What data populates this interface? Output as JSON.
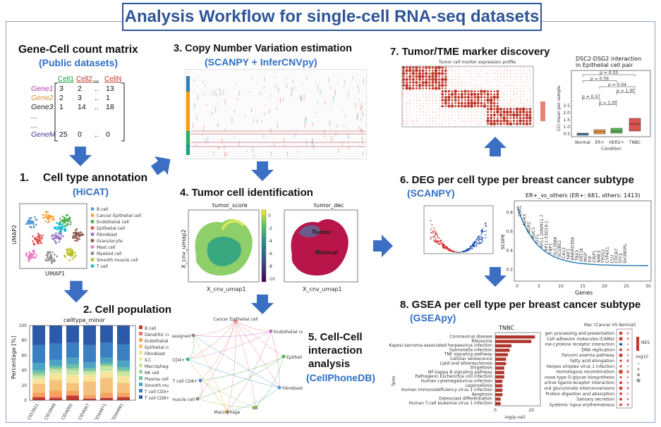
{
  "title": "Analysis Workflow for single-cell RNA-seq datasets",
  "colors": {
    "accent": "#2f5597",
    "subtitle": "#2f6fc5",
    "arrow": "#3b6fc4"
  },
  "matrix": {
    "title": "Gene-Cell count matrix",
    "subtitle": "(Public datasets)",
    "col_headers": [
      "Cell1",
      "Cell2",
      "...",
      "CellN"
    ],
    "rows": [
      {
        "gene": "Gene1",
        "values": [
          "3",
          "2",
          "..",
          "13"
        ]
      },
      {
        "gene": "Gene2",
        "values": [
          "2",
          "3",
          "..",
          "1"
        ]
      },
      {
        "gene": "Gene3",
        "values": [
          "1",
          "14",
          "..",
          "18"
        ]
      },
      {
        "gene": "...",
        "values": [
          "",
          "",
          "",
          ""
        ]
      },
      {
        "gene": "...",
        "values": [
          "",
          "",
          "",
          ""
        ]
      },
      {
        "gene": "GeneM",
        "values": [
          "25",
          "0",
          "..",
          "0"
        ]
      }
    ]
  },
  "step1": {
    "number": "1.",
    "title": "Cell type annotation",
    "subtitle": "(HiCAT)",
    "xlabel": "UMAP1",
    "ylabel": "UMAP2",
    "legend": [
      {
        "label": "B cell",
        "color": "#5b9bd5"
      },
      {
        "label": "Cancer Epithelial cell",
        "color": "#ff9f40"
      },
      {
        "label": "Endothelial cell",
        "color": "#4caf50"
      },
      {
        "label": "Epithelial cell",
        "color": "#e05050"
      },
      {
        "label": "Fibroblast",
        "color": "#9b72c8"
      },
      {
        "label": "Granulocyte",
        "color": "#8c564b"
      },
      {
        "label": "Mast cell",
        "color": "#e77fc4"
      },
      {
        "label": "Myeloid cell",
        "color": "#8a8a8a"
      },
      {
        "label": "Smooth muscle cell",
        "color": "#bcbd22"
      },
      {
        "label": "T cell",
        "color": "#17becf"
      }
    ]
  },
  "step2": {
    "title": "2. Cell population",
    "chart_title": "celltype_minor",
    "ylabel": "Percentage [%]",
    "y_ticks": [
      "0",
      "20",
      "40",
      "60",
      "80",
      "100"
    ],
    "legend": [
      {
        "label": "B cell",
        "color": "#c0392b"
      },
      {
        "label": "Dendritic cell",
        "color": "#e57373"
      },
      {
        "label": "Endothelial cell",
        "color": "#f5a25d"
      },
      {
        "label": "Epithelial cell",
        "color": "#f4c27a"
      },
      {
        "label": "Fibroblast",
        "color": "#f7e39a"
      },
      {
        "label": "ILC",
        "color": "#e9efb0"
      },
      {
        "label": "Macrophage",
        "color": "#c8e6a0"
      },
      {
        "label": "NK cell",
        "color": "#9ed39a"
      },
      {
        "label": "Plasma cell",
        "color": "#6cc0a5"
      },
      {
        "label": "Smooth muscle cell",
        "color": "#4ea3c4"
      },
      {
        "label": "T cell CD4+",
        "color": "#3a7fc1"
      },
      {
        "label": "T cell CD8+",
        "color": "#2b5aa8"
      }
    ]
  },
  "step3": {
    "title": "3. Copy Number Variation estimation",
    "subtitle": "(SCANPY + InferCNVpy)"
  },
  "step4": {
    "title": "4. Tumor cell identification",
    "left_title": "tumor_score",
    "right_title": "tumor_dec",
    "xlabel": "X_cnv_umap1",
    "ylabel": "X_cnv_umap2",
    "colorbar_ticks": [
      "0",
      "-2",
      "-4",
      "-6",
      "-8",
      "-10"
    ],
    "label_tumor": "Tumor",
    "label_normal": "Normal"
  },
  "step5": {
    "title_lines": [
      "5. Cell-Cell",
      "interaction",
      "analysis"
    ],
    "subtitle": "(CellPhoneDB)",
    "nodes": [
      "Cancer Epithelial cell",
      "Endothelial cell",
      "Epithelial cell",
      "Fibroblast",
      "ILC",
      "Macrophage",
      "Smooth muscle cell",
      "T cell CD4+",
      "T cell CD8+",
      "unassigned"
    ]
  },
  "step6": {
    "title": "6. DEG per cell type per breast cancer subtype",
    "subtitle": "(SCANPY)",
    "chart_title": "ER+_vs_others (ER+: 681, others: 1413)",
    "xlabel": "Genes",
    "ylabel": "score",
    "x_ticks": [
      "0",
      "5",
      "10",
      "15",
      "20",
      "25",
      "30"
    ],
    "y_ticks": [
      "0.2",
      "0.4",
      "0.6",
      "0.8"
    ],
    "genes": [
      "ESR1",
      "AGR3",
      "AGR2",
      "MUC1",
      "TFF1",
      "RP11-206M11.7",
      "RP11-53O19.1",
      "FBP1",
      "SLC39A6",
      "SCUBE2",
      "CA12",
      "NAT1",
      "ANKRD30A",
      "TBX3",
      "KRT18",
      "MGP",
      "PIP",
      "CRIP1",
      "NME3",
      "TPD52",
      "CYP4X1",
      "CLU",
      "CDCA7",
      "TFF3",
      "SH3BGRL"
    ]
  },
  "step7": {
    "title": "7. Tumor/TME marker discovery",
    "heatmap_title": "Tumor cell marker expression profile",
    "box_title_lines": [
      "DSC2-DSG2 interaction",
      "in Epithelial cell pair"
    ],
    "box_ylabel": "CCI mean per sample",
    "box_xlabel": "Condition",
    "categories": [
      "Normal",
      "ER+",
      "HER2+",
      "TNBC"
    ],
    "pvalues": [
      "p = 0.03",
      "p = 0.59",
      "p = 0.04",
      "p = 1.00",
      "p = 0.57",
      "p = 1.00"
    ],
    "y_ticks": [
      "0.5",
      "1.0",
      "1.5",
      "2.0",
      "2.5"
    ]
  },
  "step8": {
    "title": "8. GSEA per cell type  per breast cancer subtype",
    "subtitle": "(GSEApy)",
    "bar_title": "TNBC",
    "bar_xlabel": "-log(p-val)",
    "bar_ylabel": "Term",
    "bar_x_ticks": [
      "0",
      "20"
    ],
    "terms": [
      "Coronavirus disease",
      "Ribosome",
      "Kaposi sarcoma-associated herpesvirus infection",
      "Salmonella infection",
      "TNF signaling pathway",
      "Cellular senescence",
      "Lipid and atherosclerosis",
      "Shigellosis",
      "NF-kappa B signaling pathway",
      "Pathogenic Escherichia coli infection",
      "Human cytomegalovirus infection",
      "Legionellosis",
      "Human immunodeficiency virus 1 infection",
      "Apoptosis",
      "Osteoclast differentiation",
      "Human T-cell leukemia virus 1 infection"
    ],
    "dot_title": "Mac (Cancer VS Normal)",
    "dot_terms": [
      "Antigen processing and presentation",
      "Cell adhesion molecules (CAMs)",
      "Cytokine-cytokine receptor interaction",
      "DNA replication",
      "Fanconi anemia pathway",
      "Fatty acid elongation",
      "Herpes simplex virus 1 infection",
      "Homologous recombination",
      "Mannose type O-glycan biosynthesis",
      "Neuroactive ligand-receptor interaction",
      "Pentose and glucuronate interconversions",
      "Protein digestion and absorption",
      "Salivary secretion",
      "Systemic lupus erythematosus"
    ],
    "dot_legend": [
      "NES",
      "-log10"
    ]
  }
}
